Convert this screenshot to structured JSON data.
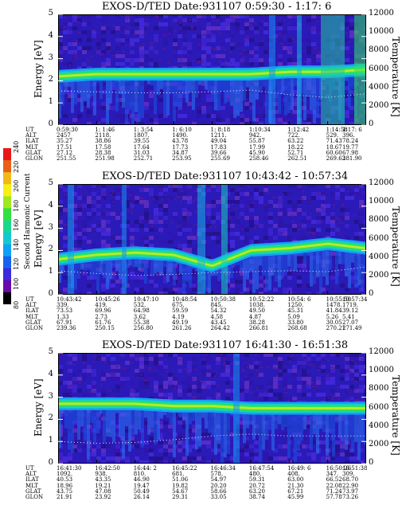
{
  "colorbar": {
    "label": "Second Harmonic Current",
    "ticks": [
      "80",
      "100",
      "120",
      "140",
      "160",
      "180",
      "200",
      "220",
      "240"
    ],
    "colors": [
      "#000000",
      "#6a0aa8",
      "#3c2adc",
      "#1862f0",
      "#10a0f4",
      "#14c8d0",
      "#18d890",
      "#34e040",
      "#a0e820",
      "#f4f018",
      "#f0b818",
      "#e86018",
      "#e81818"
    ]
  },
  "panels": [
    {
      "title": "EXOS-D/TED   Date:931107  0:59:30 - 1:17: 6",
      "y_label": "Energy [eV]",
      "right_label": "Temperature [K]",
      "y_ticks": [
        "0",
        "1",
        "2",
        "3",
        "4",
        "5"
      ],
      "right_ticks": [
        "0",
        "2000",
        "4000",
        "6000",
        "8000",
        "10000",
        "12000"
      ],
      "rows": [
        "UT",
        "ALT",
        "ILAT",
        "MLT",
        "GLAT",
        "GLON"
      ],
      "cols": [
        [
          "0:59:30",
          "2457",
          "35.27",
          "17.51",
          "27.12",
          "251.55"
        ],
        [
          "1: 1:46",
          "2118.",
          "38.86",
          "17.58",
          "28.38",
          "251.98"
        ],
        [
          "1: 3:54",
          "1807.",
          "39.55",
          "17.64",
          "31.03",
          "252.71"
        ],
        [
          "1: 6:10",
          "1490.",
          "43.78",
          "17.73",
          "34.87",
          "253.95"
        ],
        [
          "1: 8:18",
          "1211.",
          "49.04",
          "17.83",
          "39.66",
          "255.69"
        ],
        [
          "1:10:34",
          "942.",
          "55.87",
          "17.99",
          "45.90",
          "258.46"
        ],
        [
          "1:12:42",
          "722.",
          "63.22",
          "18.22",
          "52.71",
          "262.51"
        ],
        [
          "1:14:58",
          "529.",
          "71.43",
          "18.67",
          "60.60",
          "269.63"
        ],
        [
          "1:17: 6",
          "396.",
          "78.24",
          "19.77",
          "67.98",
          "281.90"
        ]
      ]
    },
    {
      "title": "EXOS-D/TED   Date:931107  10:43:42 - 10:57:34",
      "y_label": "Energy [eV]",
      "right_label": "Temperature [K]",
      "y_ticks": [
        "0",
        "1",
        "2",
        "3",
        "4",
        "5"
      ],
      "right_ticks": [
        "0",
        "2000",
        "4000",
        "6000",
        "8000",
        "10000",
        "12000"
      ],
      "rows": [
        "UT",
        "ALT",
        "ILAT",
        "MLT",
        "GLAT",
        "GLON"
      ],
      "cols": [
        [
          "10:43:42",
          "339.",
          "73.53",
          "1.33",
          "67.91",
          "239.36"
        ],
        [
          "10:45:26",
          "419.",
          "69.96",
          "2.73",
          "61.76",
          "250.15"
        ],
        [
          "10:47:10",
          "532.",
          "64.98",
          "3.62",
          "55.38",
          "256.80"
        ],
        [
          "10:48:54",
          "675.",
          "59.59",
          "4.19",
          "49.19",
          "261.26"
        ],
        [
          "10:50:38",
          "845.",
          "54.32",
          "4.58",
          "43.45",
          "264.42"
        ],
        [
          "10:52:22",
          "1038.",
          "49.50",
          "4.87",
          "38.28",
          "266.81"
        ],
        [
          "10:54: 6",
          "1250.",
          "45.31",
          "5.09",
          "33.80",
          "268.68"
        ],
        [
          "10:55:50",
          "1478.",
          "41.84",
          "5.26",
          "30.05",
          "270.21"
        ],
        [
          "10:57:34",
          "1719.",
          "39.12",
          "5.41",
          "27.07",
          "271.49"
        ]
      ]
    },
    {
      "title": "EXOS-D/TED   Date:931107  16:41:30 - 16:51:38",
      "y_label": "Energy [eV]",
      "right_label": "Temperature [K]",
      "y_ticks": [
        "0",
        "1",
        "2",
        "3",
        "4",
        "5"
      ],
      "right_ticks": [
        "0",
        "2000",
        "4000",
        "6000",
        "8000",
        "10000",
        "12000"
      ],
      "rows": [
        "UT",
        "ALT",
        "ILAT",
        "MLT",
        "GLAT",
        "GLON"
      ],
      "cols": [
        [
          "16:41:30",
          "1092.",
          "40.53",
          "18.96",
          "43.75",
          "21.91"
        ],
        [
          "16:42:50",
          "938.",
          "43.35",
          "19.21",
          "47.08",
          "23.92"
        ],
        [
          "16:44: 2",
          "810.",
          "46.90",
          "19.47",
          "50.49",
          "26.14"
        ],
        [
          "16:45:22",
          "681.",
          "51.06",
          "19.82",
          "54.67",
          "29.31"
        ],
        [
          "16:46:34",
          "578.",
          "54.97",
          "20.20",
          "58.66",
          "33.05"
        ],
        [
          "16:47:54",
          "480.",
          "59.31",
          "20.72",
          "63.20",
          "38.74"
        ],
        [
          "16:49: 6",
          "408.",
          "63.00",
          "21.30",
          "67.21",
          "45.99"
        ],
        [
          "16:50:26",
          "347.",
          "66.52",
          "22.08",
          "71.24",
          "57.78"
        ],
        [
          "16:51:38",
          "309.",
          "68.70",
          "22.90",
          "73.97",
          "73.26"
        ]
      ]
    }
  ],
  "chart_data": {
    "type": "heatmap",
    "x_axis": "UT",
    "y_axis": "Energy [eV]",
    "y_range": [
      0,
      5
    ],
    "right_axis": "Temperature [K]",
    "right_range": [
      0,
      12000
    ],
    "color_range": [
      80,
      240
    ],
    "color_label": "Second Harmonic Current",
    "panels": [
      {
        "date": "931107",
        "ut_range": [
          "0:59:30",
          "1:17: 6"
        ],
        "band_center_eV": [
          2.2,
          2.3,
          2.3,
          2.3,
          2.3,
          2.3,
          2.4,
          2.4,
          2.5
        ],
        "temperature_K": [
          3700,
          3600,
          3500,
          3500,
          3600,
          3800,
          3300,
          3000,
          3400
        ]
      },
      {
        "date": "931107",
        "ut_range": [
          "10:43:42",
          "10:57:34"
        ],
        "band_center_eV": [
          1.6,
          1.8,
          1.9,
          1.8,
          1.3,
          2.0,
          2.1,
          2.3,
          2.1
        ],
        "temperature_K": [
          2600,
          2300,
          2100,
          2200,
          2400,
          2500,
          2600,
          2500,
          3000
        ]
      },
      {
        "date": "931107",
        "ut_range": [
          "16:41:30",
          "16:51:38"
        ],
        "band_center_eV": [
          2.7,
          2.7,
          2.7,
          2.6,
          2.6,
          2.5,
          2.5,
          2.5,
          2.5
        ],
        "temperature_K": [
          2400,
          2200,
          2300,
          2600,
          3000,
          3200,
          3000,
          3000,
          3000
        ]
      }
    ]
  }
}
